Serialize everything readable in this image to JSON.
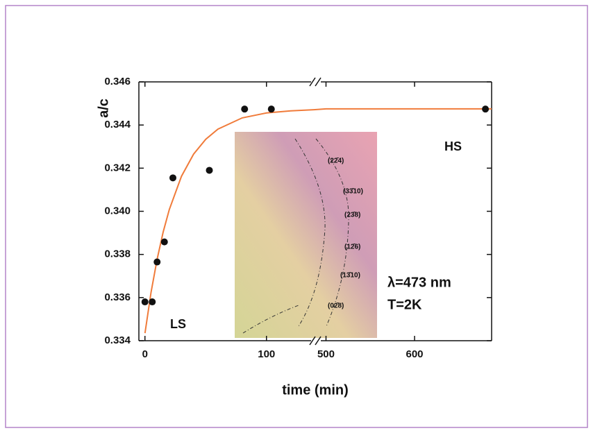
{
  "chart_data": {
    "type": "scatter",
    "x_label": "time (min)",
    "y_label": "a/c",
    "xlim": [
      -5,
      687
    ],
    "x_break": [
      139,
      491
    ],
    "xticks": [
      0,
      100,
      500,
      600
    ],
    "ylim": [
      0.334,
      0.346
    ],
    "yticks": [
      0.334,
      0.336,
      0.338,
      {
        "value": 0.34,
        "label": "0.340"
      },
      0.342,
      0.344,
      0.346
    ],
    "points": {
      "color": "#111111",
      "x": [
        0,
        6,
        10,
        16,
        23,
        53,
        82,
        104,
        680
      ],
      "y": [
        0.3358,
        0.3358,
        0.33765,
        0.33858,
        0.34155,
        0.3419,
        0.34474,
        0.34474,
        0.34474
      ]
    },
    "fit": {
      "color": "#f07b3a",
      "x": [
        0,
        5,
        10,
        15,
        20,
        30,
        40,
        50,
        60,
        80,
        100,
        120,
        139,
        500,
        600,
        687
      ],
      "y": [
        0.33435,
        0.33624,
        0.33778,
        0.33904,
        0.34008,
        0.34162,
        0.34265,
        0.34334,
        0.34381,
        0.34433,
        0.34456,
        0.34466,
        0.34471,
        0.34475,
        0.34475,
        0.34475
      ]
    },
    "annotations": [
      "HS",
      "LS",
      "λ=473 nm",
      "T=2K"
    ],
    "inset_labels": [
      "(22̄4)",
      "(33̄10)",
      "(23̄8)",
      "(12̄6)",
      "(13̄10)",
      "(02̄8)"
    ]
  }
}
